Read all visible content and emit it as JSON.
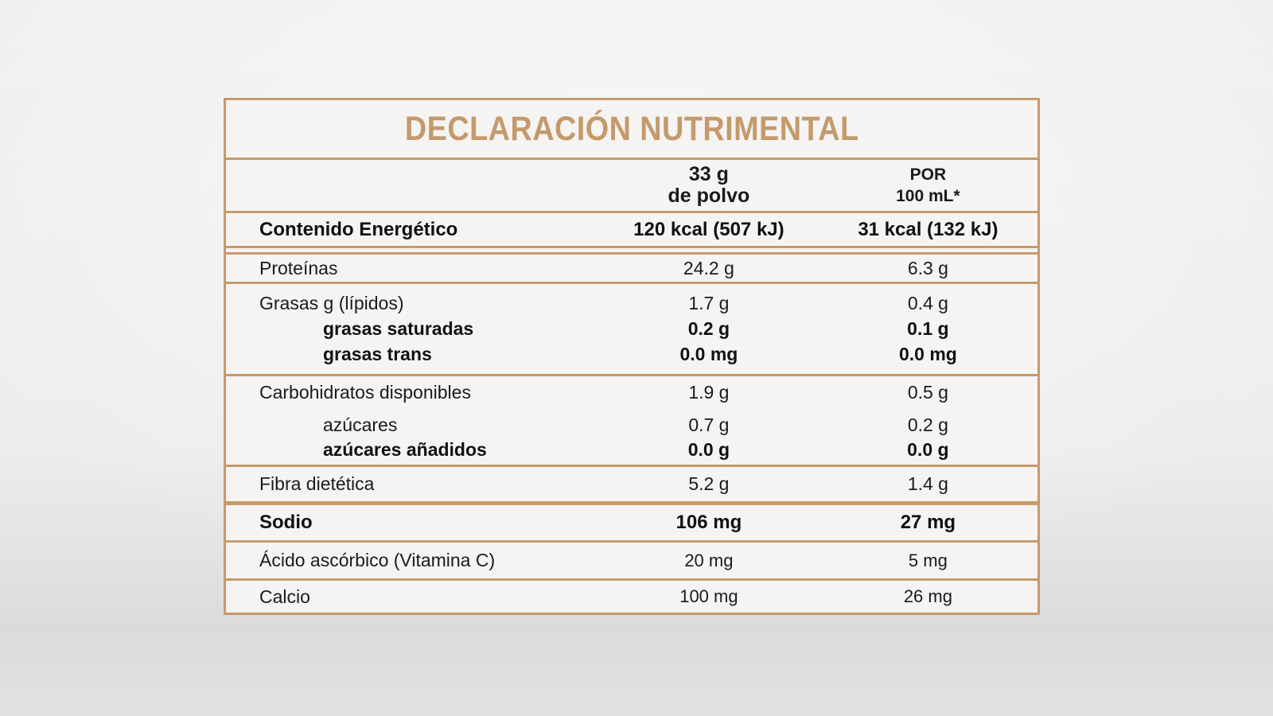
{
  "theme": {
    "accent_border_color": "#c79a6c",
    "title_color": "#c49a6c",
    "text_color": "#1a1a1a",
    "table_background": "#f5f4f3"
  },
  "table": {
    "title": "DECLARACIÓN NUTRIMENTAL",
    "header": {
      "col1": {
        "line1": "33 g",
        "line2": "de polvo"
      },
      "col2": {
        "line1": "POR",
        "line2": "100 mL*"
      }
    },
    "sections": [
      {
        "name": "energia",
        "divider_after": "double",
        "rows": [
          {
            "label": "Contenido Energético",
            "bold": true,
            "values": [
              "120 kcal (507 kJ)",
              "31 kcal (132 kJ)"
            ]
          }
        ]
      },
      {
        "name": "proteinas",
        "rows": [
          {
            "label": "Proteínas",
            "values": [
              "24.2 g",
              "6.3 g"
            ]
          }
        ]
      },
      {
        "name": "grasas",
        "rows": [
          {
            "label": "Grasas g (lípidos)",
            "values": [
              "1.7 g",
              "0.4 g"
            ]
          },
          {
            "label": "grasas saturadas",
            "bold": true,
            "indent": true,
            "values": [
              "0.2 g",
              "0.1 g"
            ]
          },
          {
            "label": "grasas trans",
            "bold": true,
            "indent": true,
            "values": [
              "0.0 mg",
              "0.0 mg"
            ]
          }
        ]
      },
      {
        "name": "carbohidratos",
        "rows": [
          {
            "label": "Carbohidratos disponibles",
            "values": [
              "1.9 g",
              "0.5 g"
            ]
          },
          {
            "label": "azúcares",
            "indent": true,
            "values": [
              "0.7 g",
              "0.2 g"
            ]
          },
          {
            "label": "azúcares añadidos",
            "bold": true,
            "indent": true,
            "values": [
              "0.0 g",
              "0.0 g"
            ]
          }
        ]
      },
      {
        "name": "fibra",
        "divider_after": "thick",
        "rows": [
          {
            "label": "Fibra dietética",
            "values": [
              "5.2 g",
              "1.4 g"
            ]
          }
        ]
      },
      {
        "name": "sodio",
        "rows": [
          {
            "label": "Sodio",
            "bold": true,
            "values": [
              "106 mg",
              "27 mg"
            ]
          }
        ]
      },
      {
        "name": "vitamina-c",
        "rows": [
          {
            "label": "Ácido ascórbico (Vitamina C)",
            "values": [
              "20 mg",
              "5 mg"
            ]
          }
        ]
      },
      {
        "name": "calcio",
        "rows": [
          {
            "label": "Calcio",
            "values": [
              "100 mg",
              "26 mg"
            ]
          }
        ]
      }
    ]
  }
}
